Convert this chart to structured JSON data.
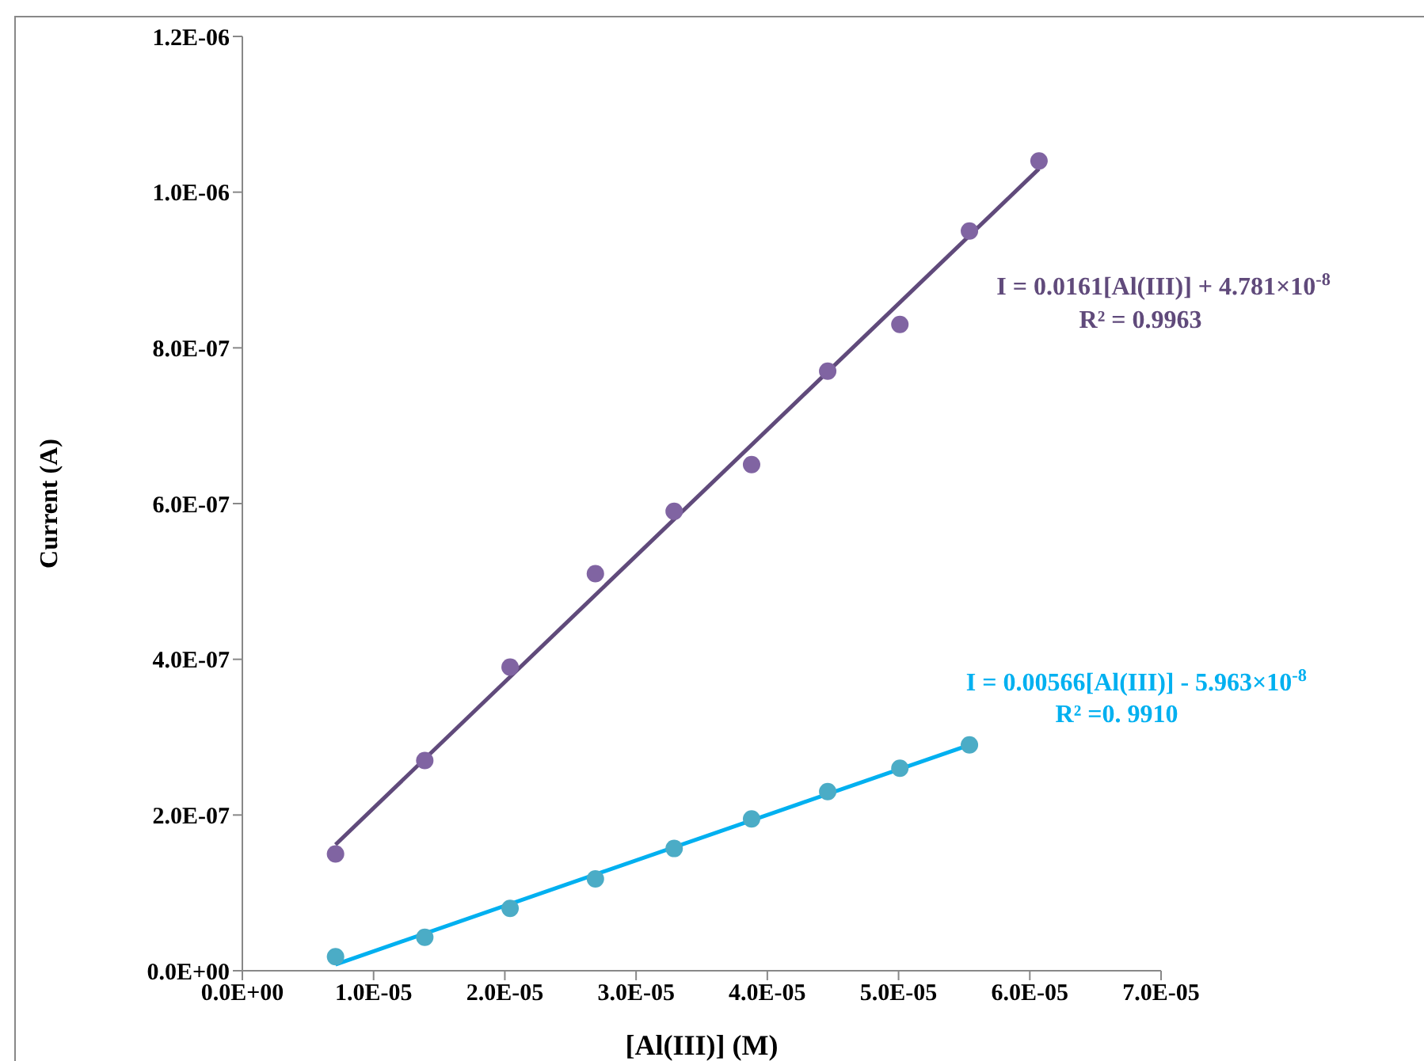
{
  "chart_data": {
    "type": "scatter",
    "xlabel": "[Al(III)] (M)",
    "ylabel": "Current (A)",
    "xlim": [
      0,
      7e-05
    ],
    "xticks": [
      {
        "value": 0,
        "label": "0.0E+00"
      },
      {
        "value": 1e-05,
        "label": "1.0E-05"
      },
      {
        "value": 2e-05,
        "label": "2.0E-05"
      },
      {
        "value": 3e-05,
        "label": "3.0E-05"
      },
      {
        "value": 4e-05,
        "label": "4.0E-05"
      },
      {
        "value": 5e-05,
        "label": "5.0E-05"
      },
      {
        "value": 6e-05,
        "label": "6.0E-05"
      },
      {
        "value": 7e-05,
        "label": "7.0E-05"
      }
    ],
    "ylim": [
      0,
      1.2e-06
    ],
    "yticks": [
      {
        "value": 0,
        "label": "0.0E+00"
      },
      {
        "value": 2e-07,
        "label": "2.0E-07"
      },
      {
        "value": 4e-07,
        "label": "4.0E-07"
      },
      {
        "value": 6e-07,
        "label": "6.0E-07"
      },
      {
        "value": 8e-07,
        "label": "8.0E-07"
      },
      {
        "value": 1e-06,
        "label": "1.0E-06"
      },
      {
        "value": 1.2e-06,
        "label": "1.2E-06"
      }
    ],
    "series": [
      {
        "marker": "circle",
        "color": "#8064a2",
        "x": [
          7.1e-06,
          1.39e-05,
          2.04e-05,
          2.69e-05,
          3.29e-05,
          3.88e-05,
          4.46e-05,
          5.01e-05,
          5.54e-05,
          6.07e-05
        ],
        "values": [
          1.5e-07,
          2.7e-07,
          3.9e-07,
          5.1e-07,
          5.9e-07,
          6.5e-07,
          7.7e-07,
          8.3e-07,
          9.5e-07,
          1.04e-06
        ]
      },
      {
        "marker": "circle",
        "color": "#4bacc6",
        "x": [
          7.1e-06,
          1.39e-05,
          2.04e-05,
          2.69e-05,
          3.29e-05,
          3.88e-05,
          4.46e-05,
          5.01e-05,
          5.54e-05
        ],
        "values": [
          1.8e-08,
          4.3e-08,
          8e-08,
          1.18e-07,
          1.57e-07,
          1.95e-07,
          2.3e-07,
          2.6e-07,
          2.9e-07
        ]
      },
      {
        "type": "line",
        "marker": "none",
        "line_style": "solid",
        "color": "#604a7b",
        "x": [
          7.1e-06,
          6.07e-05
        ],
        "values": [
          1.62e-07,
          1.03e-06
        ]
      },
      {
        "type": "line",
        "marker": "none",
        "line_style": "solid",
        "color": "#00b0f0",
        "x": [
          7.1e-06,
          5.54e-05
        ],
        "values": [
          8e-09,
          2.9e-07
        ]
      }
    ],
    "annotations": [
      "I = 0.0161[Al(III)] + 4.781×10$^{-8}$",
      "R² = 0.9963",
      "I = 0.00566[Al(III)] - 5.963×10$^{-8}$",
      "R² =0. 9910"
    ]
  }
}
